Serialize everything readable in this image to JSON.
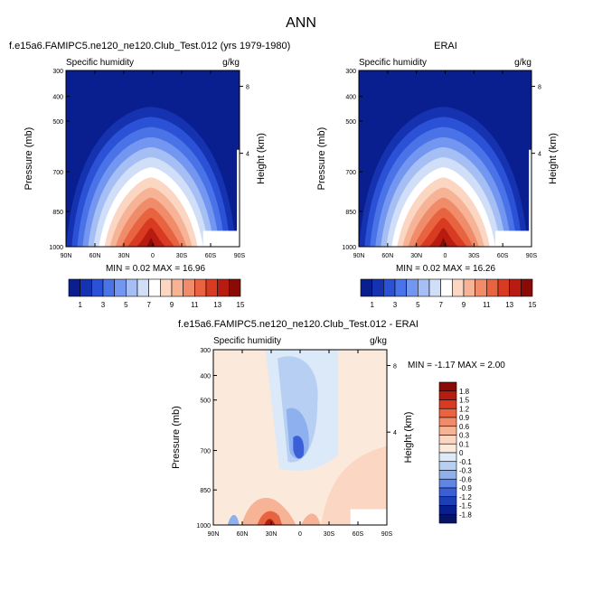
{
  "page_title": "ANN",
  "panels": [
    {
      "title": "f.e15a6.FAMIPC5.ne120_ne120.Club_Test.012 (yrs 1979-1980)",
      "variable": "Specific humidity",
      "units": "g/kg",
      "minmax": "MIN =  0.02  MAX =  16.96"
    },
    {
      "title": "ERAI",
      "variable": "Specific humidity",
      "units": "g/kg",
      "minmax": "MIN =  0.02  MAX =  16.26"
    },
    {
      "title": "f.e15a6.FAMIPC5.ne120_ne120.Club_Test.012 - ERAI",
      "variable": "Specific humidity",
      "units": "g/kg",
      "minmax": "MIN =  -1.17  MAX =    2.00"
    }
  ],
  "colorbar_top": {
    "labels": [
      "1",
      "3",
      "5",
      "7",
      "9",
      "11",
      "13",
      "15"
    ],
    "colors": [
      "#0a1f8f",
      "#1533b0",
      "#2a51d6",
      "#4a73e8",
      "#7397f0",
      "#a5bff5",
      "#d1def7",
      "#ffffff",
      "#fbd6c2",
      "#f6b395",
      "#f08c6a",
      "#e8633f",
      "#d93b22",
      "#b81c10",
      "#8a0a06"
    ]
  },
  "colorbar_diff": {
    "labels": [
      "1.8",
      "1.5",
      "1.2",
      "0.9",
      "0.6",
      "0.3",
      "0.1",
      "0",
      "-0.1",
      "-0.3",
      "-0.6",
      "-0.9",
      "-1.2",
      "-1.5",
      "-1.8"
    ],
    "colors": [
      "#8a0a06",
      "#b81c10",
      "#d93b22",
      "#e8633f",
      "#f08c6a",
      "#f6b395",
      "#fbd6c2",
      "#fbe9dc",
      "#dce9f8",
      "#b7cff3",
      "#8eb0ee",
      "#5f86e6",
      "#3a5fd9",
      "#1d3fb8",
      "#0a1f8f",
      "#061466"
    ]
  },
  "chart_data": [
    {
      "type": "heatmap",
      "title": "f.e15a6.FAMIPC5.ne120_ne120.Club_Test.012 (yrs 1979-1980)",
      "ylabel": "Pressure (mb)",
      "y2label": "Height (km)",
      "x_ticks": [
        "90N",
        "60N",
        "30N",
        "0",
        "30S",
        "60S",
        "90S"
      ],
      "y_ticks": [
        "300",
        "400",
        "500",
        "700",
        "850",
        "1000"
      ],
      "y2_ticks": [
        "8",
        "4"
      ],
      "ylim": [
        1000,
        300
      ],
      "peak_value": 16.96,
      "min": 0.02,
      "max": 16.96
    },
    {
      "type": "heatmap",
      "title": "ERAI",
      "ylabel": "Pressure (mb)",
      "y2label": "Height (km)",
      "x_ticks": [
        "90N",
        "60N",
        "30N",
        "0",
        "30S",
        "60S",
        "90S"
      ],
      "y_ticks": [
        "300",
        "400",
        "500",
        "700",
        "850",
        "1000"
      ],
      "y2_ticks": [
        "8",
        "4"
      ],
      "ylim": [
        1000,
        300
      ],
      "peak_value": 16.26,
      "min": 0.02,
      "max": 16.26
    },
    {
      "type": "heatmap",
      "title": "f.e15a6.FAMIPC5.ne120_ne120.Club_Test.012 - ERAI",
      "ylabel": "Pressure (mb)",
      "y2label": "Height (km)",
      "x_ticks": [
        "90N",
        "60N",
        "30N",
        "0",
        "30S",
        "60S",
        "90S"
      ],
      "y_ticks": [
        "300",
        "400",
        "500",
        "700",
        "850",
        "1000"
      ],
      "y2_ticks": [
        "8",
        "4"
      ],
      "ylim": [
        1000,
        300
      ],
      "min": -1.17,
      "max": 2.0
    }
  ]
}
